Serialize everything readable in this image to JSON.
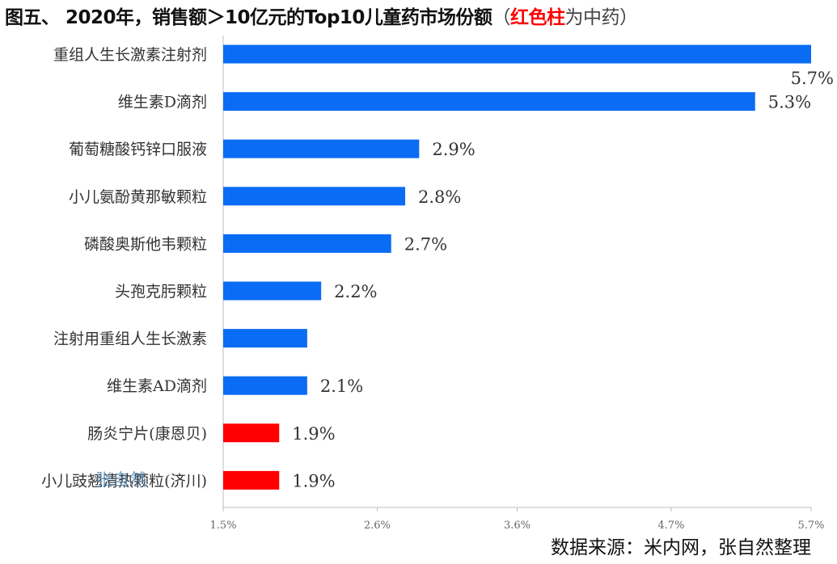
{
  "title": {
    "main": "图五、 2020年，销售额＞10亿元的Top10儿童药市场份额",
    "paren_open": "（",
    "highlight": "红色柱",
    "note": "为中药",
    "paren_close": "）"
  },
  "source": "数据来源：米内网，张自然整理",
  "watermark": "张自然",
  "colors": {
    "western": "#0a6cf5",
    "tcm": "#ff0000",
    "axis": "#bfbfbf"
  },
  "chart_data": {
    "type": "bar",
    "orientation": "horizontal",
    "title": "图五、 2020年，销售额＞10亿元的Top10儿童药市场份额（红色柱为中药）",
    "xlabel": "",
    "ylabel": "",
    "xlim": [
      1.5,
      5.7
    ],
    "tick_labels": [
      "1.5%",
      "2.6%",
      "3.6%",
      "4.7%",
      "5.7%"
    ],
    "tick_values": [
      1.5,
      2.6,
      3.6,
      4.7,
      5.7
    ],
    "categories": [
      "重组人生长激素注射剂",
      "维生素D滴剂",
      "葡萄糖酸钙锌口服液",
      "小儿氨酚黄那敏颗粒",
      "磷酸奥斯他韦颗粒",
      "头孢克肟颗粒",
      "注射用重组人生长激素",
      "维生素AD滴剂",
      "肠炎宁片(康恩贝)",
      "小儿豉翘清热颗粒(济川)"
    ],
    "values": [
      5.7,
      5.3,
      2.9,
      2.8,
      2.7,
      2.2,
      2.1,
      2.1,
      1.9,
      1.9
    ],
    "value_labels": [
      "5.7%",
      "5.3%",
      "2.9%",
      "2.8%",
      "2.7%",
      "2.2%",
      "",
      "2.1%",
      "1.9%",
      "1.9%"
    ],
    "is_tcm": [
      false,
      false,
      false,
      false,
      false,
      false,
      false,
      false,
      true,
      true
    ],
    "grid": false,
    "legend": "none"
  }
}
